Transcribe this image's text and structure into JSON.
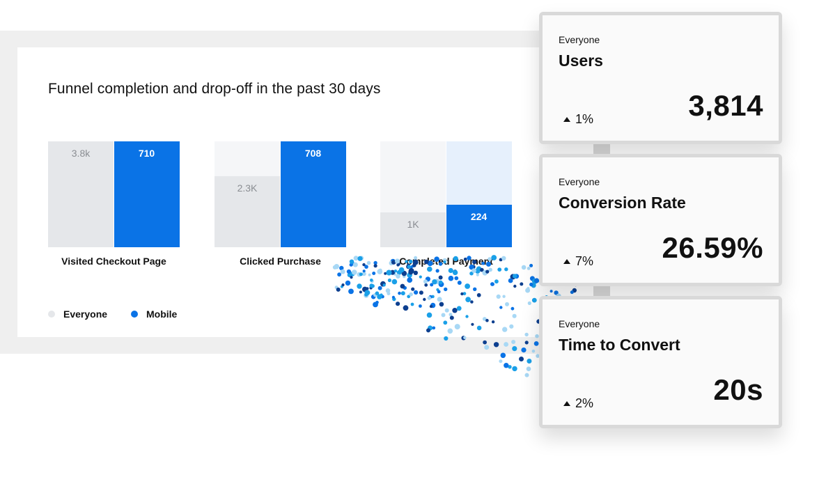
{
  "chart_data": {
    "type": "bar",
    "title": "Funnel completion and drop-off in the past 30 days",
    "categories": [
      "Visited Checkout Page",
      "Clicked Purchase",
      "Completed Payment"
    ],
    "series": [
      {
        "name": "Everyone",
        "values": [
          3800,
          2300,
          1000
        ],
        "labels": [
          "3.8k",
          "2.3K",
          "1K"
        ],
        "color": "#e5e7ea",
        "track_color": "#f5f6f8"
      },
      {
        "name": "Mobile",
        "values": [
          710,
          708,
          224
        ],
        "labels": [
          "710",
          "708",
          "224"
        ],
        "color": "#0a73e6",
        "track_color": "#e6f0fc"
      }
    ],
    "relative_fill": {
      "Everyone": [
        1.0,
        0.67,
        0.33
      ],
      "Mobile": [
        1.0,
        1.0,
        0.4
      ]
    },
    "legend": {
      "position": "bottom-left"
    },
    "grid": false
  },
  "cards": [
    {
      "subtitle": "Everyone",
      "title": "Users",
      "delta": "1%",
      "value": "3,814"
    },
    {
      "subtitle": "Everyone",
      "title": "Conversion Rate",
      "delta": "7%",
      "value": "26.59%"
    },
    {
      "subtitle": "Everyone",
      "title": "Time to Convert",
      "delta": "2%",
      "value": "20s"
    }
  ],
  "colors": {
    "mobile": "#0a73e6",
    "everyone": "#e5e7ea",
    "dots": [
      "#0a73e6",
      "#0d3f8f",
      "#1aa0e8",
      "#a8d8f5"
    ]
  }
}
